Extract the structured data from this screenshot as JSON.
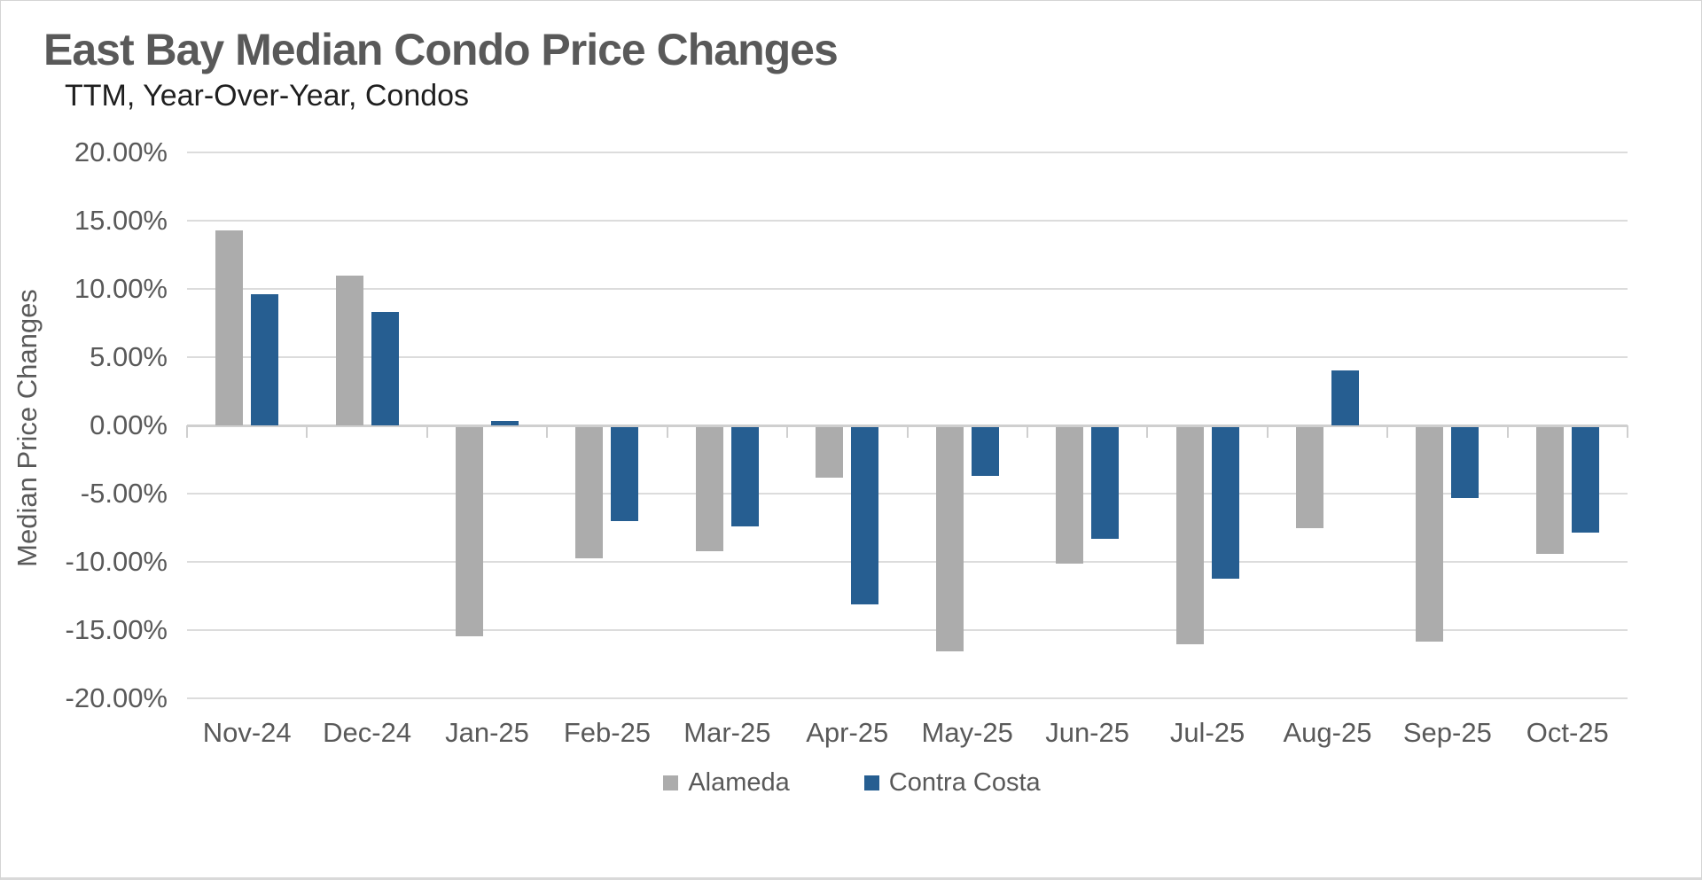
{
  "chart_data": {
    "type": "bar",
    "title": "East Bay Median Condo Price Changes",
    "subtitle": "TTM, Year-Over-Year, Condos",
    "ylabel": "Median Price Changes",
    "xlabel": "",
    "categories": [
      "Nov-24",
      "Dec-24",
      "Jan-25",
      "Feb-25",
      "Mar-25",
      "Apr-25",
      "May-25",
      "Jun-25",
      "Jul-25",
      "Aug-25",
      "Sep-25",
      "Oct-25"
    ],
    "series": [
      {
        "name": "Alameda",
        "color": "#acacac",
        "values": [
          14.3,
          11.0,
          -15.3,
          -9.6,
          -9.1,
          -3.7,
          -16.4,
          -10.0,
          -15.9,
          -7.4,
          -15.7,
          -9.3
        ]
      },
      {
        "name": "Contra Costa",
        "color": "#265e91",
        "values": [
          9.6,
          8.3,
          0.3,
          -6.9,
          -7.3,
          -13.0,
          -3.6,
          -8.2,
          -11.1,
          4.0,
          -5.2,
          -7.7
        ]
      }
    ],
    "ylim": [
      -20,
      20
    ],
    "ytick_step": 5,
    "ytick_labels": [
      "20.00%",
      "15.00%",
      "10.00%",
      "5.00%",
      "0.00%",
      "-5.00%",
      "-10.00%",
      "-15.00%",
      "-20.00%"
    ],
    "value_format": "percent",
    "grid": "horizontal",
    "legend_position": "bottom"
  },
  "colors": {
    "title_text": "#595959",
    "subtitle_text": "#1f1f1f",
    "axis_text": "#595959",
    "gridline": "#dcdcdc",
    "zero_axis": "#cfcfcf",
    "background": "#ffffff"
  }
}
